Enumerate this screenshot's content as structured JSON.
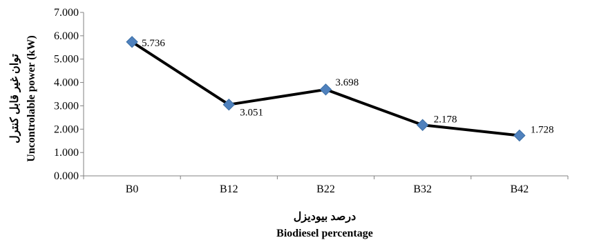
{
  "chart_data": {
    "type": "line",
    "categories": [
      "B0",
      "B12",
      "B22",
      "B32",
      "B42"
    ],
    "series": [
      {
        "values": [
          5.736,
          3.051,
          3.698,
          2.178,
          1.728
        ]
      }
    ],
    "data_labels": [
      "5.736",
      "3.051",
      "3.698",
      "2.178",
      "1.728"
    ],
    "ylim": [
      0,
      7
    ],
    "yticks": [
      0,
      1,
      2,
      3,
      4,
      5,
      6,
      7
    ],
    "ytick_labels": [
      "0.000",
      "1.000",
      "2.000",
      "3.000",
      "4.000",
      "5.000",
      "6.000",
      "7.000"
    ],
    "xlabel_fa": "درصد بیودیزل",
    "xlabel_en": "Biodiesel percentage",
    "ylabel_fa": "توان غیر قابل کنترل",
    "ylabel_en": "Uncontrolable power (kW)",
    "grid": false,
    "legend": false,
    "colors": {
      "line": "#000000",
      "marker": "#4F81BD",
      "axis": "#808080"
    }
  }
}
